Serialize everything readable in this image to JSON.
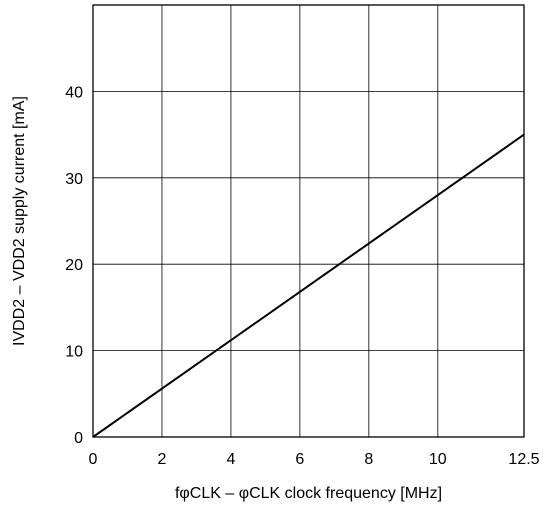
{
  "chart_data": {
    "type": "line",
    "title": "",
    "xlabel": "fφCLK – φCLK clock frequency [MHz]",
    "ylabel": "IVDD2 – VDD2 supply current [mA]",
    "xlim": [
      0,
      12.5
    ],
    "ylim": [
      0,
      50
    ],
    "x_ticks": [
      0,
      2,
      4,
      6,
      8,
      10,
      12.5
    ],
    "x_tick_labels": [
      "0",
      "2",
      "4",
      "6",
      "8",
      "10",
      "12.5"
    ],
    "y_ticks": [
      0,
      10,
      20,
      30,
      40
    ],
    "y_tick_labels": [
      "0",
      "10",
      "20",
      "30",
      "40"
    ],
    "grid": true,
    "series": [
      {
        "x": [
          0,
          12.5
        ],
        "y": [
          0,
          35
        ]
      }
    ]
  }
}
